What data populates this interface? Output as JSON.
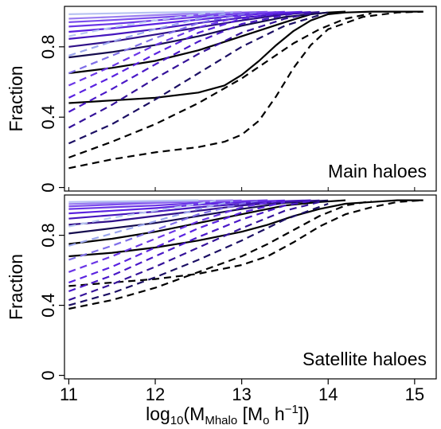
{
  "chart_data": [
    {
      "type": "line",
      "panel": "top",
      "annotation": "Main haloes",
      "ylabel": "Fraction",
      "xlabel": "",
      "xlim": [
        10.95,
        15.25
      ],
      "ylim": [
        -0.02,
        1.03
      ],
      "yticks": [
        0,
        0.4,
        0.8
      ],
      "ytick_labels": [
        "0",
        "0.4",
        "0.8"
      ],
      "series": [
        {
          "style": "solid",
          "color": "#000000",
          "x": [
            11.0,
            11.5,
            12.0,
            12.5,
            12.8,
            13.0,
            13.2,
            13.4,
            13.6,
            13.8,
            14.0,
            14.2,
            14.5,
            14.8,
            15.1
          ],
          "y": [
            0.48,
            0.495,
            0.51,
            0.54,
            0.58,
            0.64,
            0.72,
            0.81,
            0.89,
            0.95,
            0.985,
            0.995,
            1.0,
            1.0,
            1.0
          ]
        },
        {
          "style": "solid",
          "color": "#000000",
          "x": [
            11.0,
            11.5,
            12.0,
            12.5,
            13.0,
            13.5,
            13.8,
            14.0,
            14.2
          ],
          "y": [
            0.65,
            0.68,
            0.72,
            0.78,
            0.86,
            0.94,
            0.985,
            0.995,
            1.0
          ]
        },
        {
          "style": "solid",
          "color": "#150c4e",
          "x": [
            11.0,
            11.5,
            12.0,
            12.5,
            13.0,
            13.5,
            14.0
          ],
          "y": [
            0.74,
            0.77,
            0.81,
            0.86,
            0.92,
            0.97,
            0.995
          ]
        },
        {
          "style": "solid",
          "color": "#301189",
          "x": [
            11.0,
            11.5,
            12.0,
            12.5,
            13.0,
            13.5,
            13.9
          ],
          "y": [
            0.8,
            0.83,
            0.87,
            0.91,
            0.95,
            0.985,
            0.998
          ]
        },
        {
          "style": "solid",
          "color": "#4516bd",
          "x": [
            11.0,
            11.5,
            12.0,
            12.5,
            13.0,
            13.5,
            13.8
          ],
          "y": [
            0.845,
            0.87,
            0.9,
            0.935,
            0.965,
            0.99,
            0.998
          ]
        },
        {
          "style": "solid",
          "color": "#5a22e0",
          "x": [
            11.0,
            11.5,
            12.0,
            12.5,
            13.0,
            13.5,
            13.7
          ],
          "y": [
            0.885,
            0.905,
            0.93,
            0.955,
            0.98,
            0.995,
            0.999
          ]
        },
        {
          "style": "solid",
          "color": "#6a35e6",
          "x": [
            11.0,
            11.5,
            12.0,
            12.5,
            13.0,
            13.5
          ],
          "y": [
            0.915,
            0.93,
            0.95,
            0.97,
            0.99,
            0.999
          ]
        },
        {
          "style": "solid",
          "color": "#7c4eec",
          "x": [
            11.0,
            11.5,
            12.0,
            12.5,
            13.0,
            13.3
          ],
          "y": [
            0.94,
            0.952,
            0.966,
            0.98,
            0.995,
            0.999
          ]
        },
        {
          "style": "solid",
          "color": "#9a7ef0",
          "x": [
            11.0,
            11.5,
            12.0,
            12.5,
            13.0
          ],
          "y": [
            0.96,
            0.97,
            0.98,
            0.99,
            0.998
          ]
        },
        {
          "style": "solid",
          "color": "#b7c2f2",
          "x": [
            11.0,
            11.5,
            12.0,
            12.5,
            12.8
          ],
          "y": [
            0.985,
            0.99,
            0.995,
            0.998,
            1.0
          ]
        },
        {
          "style": "dashed",
          "color": "#000000",
          "x": [
            11.0,
            11.5,
            12.0,
            12.5,
            12.8,
            13.0,
            13.2,
            13.4,
            13.6,
            13.8,
            14.0,
            14.4,
            14.8,
            15.1
          ],
          "y": [
            0.11,
            0.16,
            0.2,
            0.23,
            0.26,
            0.3,
            0.38,
            0.52,
            0.68,
            0.81,
            0.9,
            0.97,
            0.995,
            1.0
          ]
        },
        {
          "style": "dashed",
          "color": "#000000",
          "x": [
            11.0,
            11.5,
            12.0,
            12.5,
            13.0,
            13.3,
            13.6,
            13.9,
            14.2,
            14.5
          ],
          "y": [
            0.17,
            0.26,
            0.36,
            0.48,
            0.62,
            0.72,
            0.82,
            0.9,
            0.96,
            0.99
          ]
        },
        {
          "style": "dashed",
          "color": "#1b0f63",
          "x": [
            11.0,
            11.5,
            12.0,
            12.5,
            13.0,
            13.5,
            13.9
          ],
          "y": [
            0.25,
            0.36,
            0.5,
            0.65,
            0.8,
            0.92,
            0.98
          ]
        },
        {
          "style": "dashed",
          "color": "#35129a",
          "x": [
            11.0,
            11.5,
            12.0,
            12.5,
            13.0,
            13.5,
            13.8
          ],
          "y": [
            0.34,
            0.47,
            0.62,
            0.76,
            0.88,
            0.96,
            0.99
          ]
        },
        {
          "style": "dashed",
          "color": "#4a18c8",
          "x": [
            11.0,
            11.5,
            12.0,
            12.5,
            13.0,
            13.5,
            13.7
          ],
          "y": [
            0.43,
            0.56,
            0.7,
            0.83,
            0.93,
            0.98,
            0.995
          ]
        },
        {
          "style": "dashed",
          "color": "#5a22e0",
          "x": [
            11.0,
            11.5,
            12.0,
            12.5,
            13.0,
            13.5
          ],
          "y": [
            0.51,
            0.63,
            0.76,
            0.88,
            0.96,
            0.995
          ]
        },
        {
          "style": "dashed",
          "color": "#6b36e6",
          "x": [
            11.0,
            11.5,
            12.0,
            12.5,
            13.0,
            13.4
          ],
          "y": [
            0.58,
            0.69,
            0.81,
            0.91,
            0.975,
            0.998
          ]
        },
        {
          "style": "dashed",
          "color": "#7f6ee8",
          "x": [
            11.0,
            11.5,
            12.0,
            12.5,
            13.0,
            13.2
          ],
          "y": [
            0.65,
            0.75,
            0.85,
            0.935,
            0.985,
            0.998
          ]
        },
        {
          "style": "dashed",
          "color": "#9ba6ee",
          "x": [
            11.0,
            11.5,
            12.0,
            12.5,
            12.9
          ],
          "y": [
            0.75,
            0.83,
            0.9,
            0.96,
            0.995
          ]
        },
        {
          "style": "dashed",
          "color": "#b9c8f2",
          "x": [
            11.0,
            11.5,
            12.0,
            12.5,
            12.7
          ],
          "y": [
            0.86,
            0.91,
            0.95,
            0.985,
            0.998
          ]
        }
      ]
    },
    {
      "type": "line",
      "panel": "bottom",
      "annotation": "Satellite haloes",
      "ylabel": "Fraction",
      "xlabel": "log10(MMhalo [Mo h−1])",
      "xlim": [
        10.95,
        15.25
      ],
      "ylim": [
        -0.02,
        1.03
      ],
      "xticks": [
        11,
        12,
        13,
        14,
        15
      ],
      "xtick_labels": [
        "11",
        "12",
        "13",
        "14",
        "15"
      ],
      "yticks": [
        0,
        0.4,
        0.8
      ],
      "ytick_labels": [
        "0",
        "0.4",
        "0.8"
      ],
      "series": [
        {
          "style": "solid",
          "color": "#000000",
          "x": [
            11.0,
            11.5,
            12.0,
            12.5,
            13.0,
            13.3,
            13.6,
            13.9,
            14.2,
            14.5,
            14.8,
            15.1
          ],
          "y": [
            0.68,
            0.7,
            0.73,
            0.77,
            0.82,
            0.86,
            0.91,
            0.95,
            0.98,
            0.99,
            1.0,
            1.0
          ]
        },
        {
          "style": "solid",
          "color": "#000000",
          "x": [
            11.0,
            11.5,
            12.0,
            12.5,
            13.0,
            13.5,
            13.9,
            14.2
          ],
          "y": [
            0.75,
            0.78,
            0.82,
            0.87,
            0.92,
            0.97,
            0.99,
            1.0
          ]
        },
        {
          "style": "solid",
          "color": "#150c4e",
          "x": [
            11.0,
            11.5,
            12.0,
            12.5,
            13.0,
            13.5,
            14.0
          ],
          "y": [
            0.81,
            0.84,
            0.87,
            0.91,
            0.95,
            0.985,
            0.999
          ]
        },
        {
          "style": "solid",
          "color": "#301189",
          "x": [
            11.0,
            11.5,
            12.0,
            12.5,
            13.0,
            13.5,
            13.9
          ],
          "y": [
            0.86,
            0.88,
            0.91,
            0.94,
            0.97,
            0.99,
            0.999
          ]
        },
        {
          "style": "solid",
          "color": "#4516bd",
          "x": [
            11.0,
            11.5,
            12.0,
            12.5,
            13.0,
            13.5,
            13.8
          ],
          "y": [
            0.895,
            0.915,
            0.935,
            0.96,
            0.98,
            0.995,
            1.0
          ]
        },
        {
          "style": "solid",
          "color": "#5a22e0",
          "x": [
            11.0,
            11.5,
            12.0,
            12.5,
            13.0,
            13.5
          ],
          "y": [
            0.925,
            0.94,
            0.955,
            0.975,
            0.99,
            0.999
          ]
        },
        {
          "style": "solid",
          "color": "#6a35e6",
          "x": [
            11.0,
            11.5,
            12.0,
            12.5,
            13.0,
            13.3
          ],
          "y": [
            0.95,
            0.96,
            0.97,
            0.985,
            0.995,
            1.0
          ]
        },
        {
          "style": "solid",
          "color": "#7c4eec",
          "x": [
            11.0,
            11.5,
            12.0,
            12.5,
            13.0
          ],
          "y": [
            0.965,
            0.975,
            0.985,
            0.993,
            0.999
          ]
        },
        {
          "style": "solid",
          "color": "#9a7ef0",
          "x": [
            11.0,
            11.5,
            12.0,
            12.5,
            12.9
          ],
          "y": [
            0.978,
            0.985,
            0.99,
            0.996,
            1.0
          ]
        },
        {
          "style": "solid",
          "color": "#b7c2f2",
          "x": [
            11.0,
            11.5,
            12.0,
            12.5
          ],
          "y": [
            0.99,
            0.993,
            0.997,
            1.0
          ]
        },
        {
          "style": "dashed",
          "color": "#000000",
          "x": [
            11.0,
            11.5,
            12.0,
            12.5,
            13.0,
            13.3,
            13.6,
            13.9,
            14.2,
            14.5,
            14.8,
            15.1
          ],
          "y": [
            0.51,
            0.53,
            0.55,
            0.58,
            0.63,
            0.68,
            0.76,
            0.85,
            0.92,
            0.96,
            0.99,
            1.0
          ]
        },
        {
          "style": "dashed",
          "color": "#000000",
          "x": [
            11.0,
            11.5,
            12.0,
            12.5,
            13.0,
            13.3,
            13.6,
            13.9,
            14.2,
            14.5
          ],
          "y": [
            0.38,
            0.43,
            0.5,
            0.59,
            0.68,
            0.75,
            0.83,
            0.91,
            0.97,
            0.995
          ]
        },
        {
          "style": "dashed",
          "color": "#1b0f63",
          "x": [
            11.0,
            11.5,
            12.0,
            12.5,
            13.0,
            13.5,
            14.0
          ],
          "y": [
            0.4,
            0.47,
            0.56,
            0.66,
            0.77,
            0.89,
            0.98
          ]
        },
        {
          "style": "dashed",
          "color": "#35129a",
          "x": [
            11.0,
            11.5,
            12.0,
            12.5,
            13.0,
            13.5,
            13.9
          ],
          "y": [
            0.43,
            0.52,
            0.62,
            0.73,
            0.84,
            0.94,
            0.99
          ]
        },
        {
          "style": "dashed",
          "color": "#4a18c8",
          "x": [
            11.0,
            11.5,
            12.0,
            12.5,
            13.0,
            13.5,
            13.8
          ],
          "y": [
            0.48,
            0.57,
            0.68,
            0.79,
            0.89,
            0.97,
            0.995
          ]
        },
        {
          "style": "dashed",
          "color": "#5a22e0",
          "x": [
            11.0,
            11.5,
            12.0,
            12.5,
            13.0,
            13.5
          ],
          "y": [
            0.53,
            0.62,
            0.73,
            0.84,
            0.93,
            0.99
          ]
        },
        {
          "style": "dashed",
          "color": "#6b36e6",
          "x": [
            11.0,
            11.5,
            12.0,
            12.5,
            13.0,
            13.4
          ],
          "y": [
            0.59,
            0.68,
            0.78,
            0.88,
            0.96,
            0.995
          ]
        },
        {
          "style": "dashed",
          "color": "#7f6ee8",
          "x": [
            11.0,
            11.5,
            12.0,
            12.5,
            13.0,
            13.2
          ],
          "y": [
            0.66,
            0.74,
            0.83,
            0.92,
            0.98,
            0.998
          ]
        },
        {
          "style": "dashed",
          "color": "#9ba6ee",
          "x": [
            11.0,
            11.5,
            12.0,
            12.5,
            12.9
          ],
          "y": [
            0.74,
            0.81,
            0.88,
            0.95,
            0.995
          ]
        },
        {
          "style": "dashed",
          "color": "#b9c8f2",
          "x": [
            11.0,
            11.5,
            12.0,
            12.5,
            12.7
          ],
          "y": [
            0.85,
            0.9,
            0.94,
            0.98,
            0.998
          ]
        }
      ]
    }
  ],
  "xlabel_parts": {
    "prefix": "log",
    "prefix_sub": "10",
    "open": "(M",
    "mass_sub": "Mhalo",
    "bracket": " [M",
    "sun_sub": "o",
    "unit": " h",
    "unit_sup": "−1",
    "close": "])"
  }
}
